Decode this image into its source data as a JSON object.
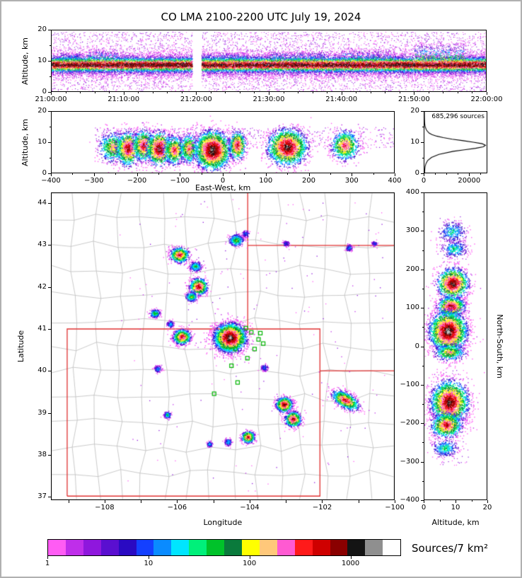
{
  "title": "CO LMA 2100-2200 UTC July 19, 2024",
  "colorbar": {
    "label": "Sources/7 km²",
    "tick_labels": [
      "1",
      "10",
      "100",
      "1000"
    ],
    "tick_log_positions": [
      0,
      1,
      2,
      3
    ],
    "decades": 3.5,
    "colors": [
      "#ff5cf4",
      "#bf2eea",
      "#8f17dd",
      "#5a0fd0",
      "#2a0ac2",
      "#1440ff",
      "#0a8bff",
      "#00e5ff",
      "#00f07a",
      "#00c22a",
      "#0a7a3c",
      "#ffff00",
      "#ffc87a",
      "#ff5ad2",
      "#ff1a1a",
      "#cf0000",
      "#8a0000",
      "#141414",
      "#8f8f8f",
      "#ffffff"
    ]
  },
  "chart_data": {
    "type": "heatmap",
    "description": "Lightning Mapping Array source density plot with five linked panels: time-height, east-west cross-section, altitude histogram, plan-view map, north-south cross-section",
    "panels": {
      "time_height": {
        "type": "scatter-density",
        "ylabel": "Altitude, km",
        "ylim": [
          0,
          20
        ],
        "yticks": [
          0,
          10,
          20
        ],
        "ytick_labels": [
          "0",
          "10",
          "20"
        ],
        "yminor": [
          5,
          15
        ],
        "xlim_minutes": [
          0,
          60
        ],
        "xticks": [
          0,
          10,
          20,
          30,
          40,
          50,
          60
        ],
        "xtick_labels": [
          "21:00:00",
          "21:10:00",
          "21:20:00",
          "21:30:00",
          "21:40:00",
          "21:50:00",
          "22:00:00"
        ],
        "gap_minutes": [
          19.4,
          20.7
        ],
        "band": {
          "center_alt_km": 8.8,
          "sd_km": 1.9,
          "n": 26000
        },
        "sparse_n": 5000,
        "plumes": [
          [
            1,
            4,
            13,
            200
          ],
          [
            5,
            9,
            14,
            250
          ],
          [
            21,
            27,
            13,
            300
          ],
          [
            30,
            38,
            13.5,
            350
          ],
          [
            40,
            47,
            14,
            380
          ],
          [
            50,
            57,
            16,
            600
          ]
        ]
      },
      "east_west": {
        "type": "scatter-density",
        "xlabel": "East-West, km",
        "ylabel": "Altitude, km",
        "xlim": [
          -400,
          400
        ],
        "ylim": [
          0,
          20
        ],
        "xticks": [
          -400,
          -300,
          -200,
          -100,
          0,
          100,
          200,
          300,
          400
        ],
        "xtick_labels": [
          "−400",
          "−300",
          "−200",
          "−100",
          "0",
          "100",
          "200",
          "300",
          "400"
        ],
        "yticks": [
          0,
          10,
          20
        ],
        "ytick_labels": [
          "0",
          "10",
          "20"
        ],
        "yminor": [
          5,
          15
        ],
        "cluster_format": [
          "ew_km",
          "alt_km",
          "sigma_ew_km",
          "sigma_alt_km",
          "intensity",
          "n_points"
        ],
        "clusters": [
          [
            -258,
            8.5,
            16,
            2.4,
            0.7,
            650
          ],
          [
            -222,
            8,
            14,
            2.8,
            0.9,
            900
          ],
          [
            -186,
            9,
            13,
            2.6,
            0.85,
            800
          ],
          [
            -150,
            8,
            15,
            2.8,
            0.95,
            1050
          ],
          [
            -114,
            7.5,
            13,
            2.4,
            0.8,
            700
          ],
          [
            -80,
            8,
            11,
            2.4,
            0.75,
            600
          ],
          [
            -25,
            7.5,
            21,
            3.2,
            1.0,
            2600
          ],
          [
            33,
            9,
            10,
            2.4,
            0.85,
            600
          ],
          [
            150,
            8.5,
            23,
            3.0,
            0.95,
            2100
          ],
          [
            285,
            9,
            16,
            2.4,
            0.8,
            800
          ]
        ],
        "sparse": {
          "n": 700,
          "ew": [
            -300,
            400
          ],
          "alt": [
            8,
            15
          ]
        }
      },
      "histogram": {
        "type": "line",
        "annotation": "685,296 sources",
        "xlim": [
          0,
          28000
        ],
        "xticks": [
          0,
          20000
        ],
        "xtick_labels": [
          "0",
          "20000"
        ],
        "ylim": [
          0,
          20
        ],
        "yticks": [
          0,
          10,
          20
        ],
        "ytick_labels": [
          "0",
          "10",
          "20"
        ],
        "yminor": [
          5,
          15
        ],
        "profile_alt_count": [
          [
            0,
            100
          ],
          [
            1,
            160
          ],
          [
            2,
            320
          ],
          [
            3,
            700
          ],
          [
            4,
            1500
          ],
          [
            5,
            3200
          ],
          [
            6,
            6500
          ],
          [
            7,
            13000
          ],
          [
            7.5,
            18000
          ],
          [
            8,
            23000
          ],
          [
            8.5,
            26500
          ],
          [
            9,
            27500
          ],
          [
            9.5,
            26000
          ],
          [
            10,
            22000
          ],
          [
            10.5,
            17500
          ],
          [
            11,
            12500
          ],
          [
            11.5,
            8500
          ],
          [
            12,
            5500
          ],
          [
            12.5,
            3400
          ],
          [
            13,
            2100
          ],
          [
            14,
            900
          ],
          [
            15,
            380
          ],
          [
            16,
            140
          ],
          [
            17,
            60
          ],
          [
            18,
            25
          ],
          [
            19,
            8
          ],
          [
            20,
            2
          ]
        ]
      },
      "map": {
        "type": "scatter-density",
        "xlabel": "Longitude",
        "ylabel": "Latitude",
        "xlim": [
          -109.48,
          -100.0
        ],
        "ylim": [
          36.92,
          44.25
        ],
        "lon_ticks": [
          -109,
          -108,
          -107,
          -106,
          -105,
          -104,
          -103,
          -102,
          -101,
          -100
        ],
        "lon_tick_labels": [
          "",
          "−108",
          "",
          "−106",
          "",
          "−104",
          "",
          "−102",
          "",
          "−100"
        ],
        "lat_ticks": [
          37,
          38,
          39,
          40,
          41,
          42,
          43,
          44
        ],
        "lat_tick_labels": [
          "37",
          "38",
          "39",
          "40",
          "41",
          "42",
          "43",
          "44"
        ],
        "state_border_color": "#e03030",
        "county_line_color": "#bdbdbd",
        "state_borders": [
          [
            [
              -109.05,
              37.0
            ],
            [
              -102.05,
              37.0
            ],
            [
              -102.05,
              41.0
            ],
            [
              -109.05,
              41.0
            ],
            [
              -109.05,
              37.0
            ]
          ],
          [
            [
              -104.05,
              41.0
            ],
            [
              -104.05,
              44.25
            ]
          ],
          [
            [
              -104.05,
              43.0
            ],
            [
              -100.0,
              43.0
            ]
          ],
          [
            [
              -102.05,
              40.0
            ],
            [
              -100.0,
              40.0
            ]
          ]
        ],
        "county_mesh": {
          "nx": 15,
          "ny": 12,
          "jitter_deg": 0.11
        },
        "station_color": "#00b400",
        "stations": [
          [
            -104.1,
            41.02
          ],
          [
            -103.95,
            40.92
          ],
          [
            -104.22,
            40.72
          ],
          [
            -103.75,
            40.75
          ],
          [
            -104.4,
            40.52
          ],
          [
            -103.86,
            40.52
          ],
          [
            -104.06,
            40.3
          ],
          [
            -104.5,
            40.12
          ],
          [
            -103.62,
            40.65
          ],
          [
            -104.33,
            39.72
          ],
          [
            -104.98,
            39.45
          ],
          [
            -103.7,
            40.9
          ]
        ],
        "cluster_format": [
          "lon",
          "lat",
          "sigma_lon_deg",
          "sigma_lat_deg",
          "intensity",
          "n_points",
          "angle_deg"
        ],
        "clusters": [
          [
            -104.38,
            43.13,
            0.1,
            0.07,
            0.6,
            380
          ],
          [
            -104.12,
            43.28,
            0.05,
            0.04,
            0.35,
            120
          ],
          [
            -103.0,
            43.05,
            0.045,
            0.035,
            0.3,
            90
          ],
          [
            -101.25,
            42.95,
            0.05,
            0.04,
            0.35,
            110
          ],
          [
            -100.55,
            43.05,
            0.04,
            0.03,
            0.3,
            70
          ],
          [
            -105.95,
            42.78,
            0.13,
            0.09,
            0.85,
            700
          ],
          [
            -105.5,
            42.5,
            0.08,
            0.06,
            0.55,
            260
          ],
          [
            -105.42,
            42.02,
            0.12,
            0.1,
            0.9,
            750
          ],
          [
            -105.62,
            41.78,
            0.08,
            0.06,
            0.6,
            260
          ],
          [
            -106.63,
            41.38,
            0.07,
            0.05,
            0.6,
            230
          ],
          [
            -106.2,
            41.12,
            0.05,
            0.04,
            0.4,
            130
          ],
          [
            -104.55,
            40.8,
            0.22,
            0.17,
            1.0,
            3200
          ],
          [
            -105.88,
            40.82,
            0.12,
            0.09,
            0.85,
            750
          ],
          [
            -106.55,
            40.05,
            0.05,
            0.04,
            0.4,
            110
          ],
          [
            -103.05,
            39.2,
            0.11,
            0.09,
            0.92,
            750
          ],
          [
            -102.8,
            38.85,
            0.11,
            0.09,
            0.9,
            700
          ],
          [
            -101.35,
            39.3,
            0.2,
            0.09,
            0.85,
            950,
            -25
          ],
          [
            -104.05,
            38.42,
            0.09,
            0.07,
            0.85,
            480
          ],
          [
            -104.6,
            38.3,
            0.05,
            0.04,
            0.45,
            130
          ],
          [
            -106.28,
            38.95,
            0.05,
            0.04,
            0.5,
            160
          ],
          [
            -105.12,
            38.25,
            0.04,
            0.035,
            0.4,
            100
          ],
          [
            -103.6,
            40.08,
            0.05,
            0.04,
            0.35,
            110
          ]
        ],
        "sparse": {
          "n": 170,
          "lon": [
            -107.6,
            -100.2
          ],
          "lat": [
            37.1,
            44.15
          ]
        }
      },
      "north_south": {
        "type": "scatter-density",
        "xlabel": "Altitude, km",
        "ylabel": "North-South, km",
        "xlim": [
          0,
          20
        ],
        "ylim": [
          -400,
          400
        ],
        "xticks": [
          0,
          10,
          20
        ],
        "xtick_labels": [
          "0",
          "10",
          "20"
        ],
        "xminor": [
          5,
          15
        ],
        "yticks": [
          -400,
          -300,
          -200,
          -100,
          0,
          100,
          200,
          300,
          400
        ],
        "ytick_labels": [
          "−400",
          "−300",
          "−200",
          "−100",
          "0",
          "100",
          "200",
          "300",
          "400"
        ],
        "cluster_format": [
          "alt_km",
          "ns_km",
          "sigma_alt_km",
          "sigma_ns_km",
          "intensity",
          "n_points"
        ],
        "clusters": [
          [
            9,
            300,
            2.2,
            14,
            0.45,
            300
          ],
          [
            9.5,
            255,
            2.0,
            11,
            0.5,
            300
          ],
          [
            9,
            165,
            2.5,
            20,
            0.95,
            1250
          ],
          [
            8.5,
            105,
            2.2,
            13,
            0.9,
            850
          ],
          [
            7.5,
            40,
            3.0,
            26,
            1.0,
            2800
          ],
          [
            8,
            -15,
            2.5,
            11,
            0.7,
            500
          ],
          [
            8,
            -145,
            3.0,
            28,
            0.95,
            2400
          ],
          [
            7,
            -205,
            2.5,
            16,
            0.85,
            950
          ],
          [
            6.5,
            -265,
            2.0,
            11,
            0.5,
            320
          ]
        ],
        "sparse": {
          "n": 260,
          "alt": [
            4,
            14
          ],
          "ns": [
            -320,
            340
          ]
        }
      }
    }
  }
}
